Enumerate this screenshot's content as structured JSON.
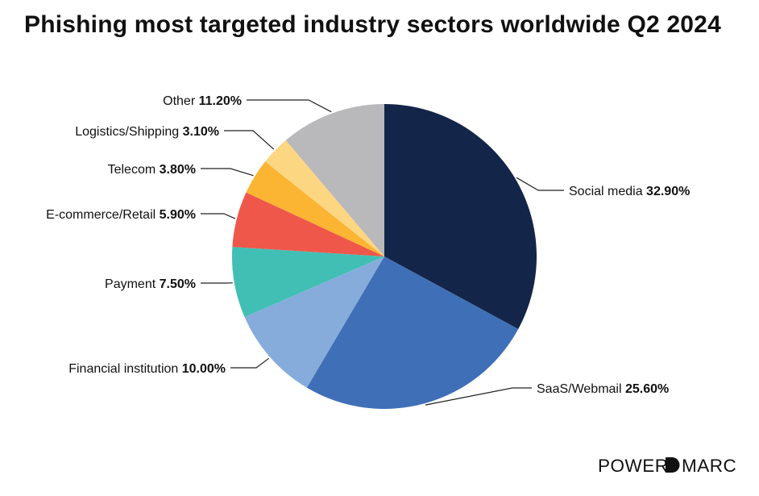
{
  "title": "Phishing most targeted industry sectors worldwide Q2 2024",
  "brand": "POWERDMARC",
  "chart_data": {
    "type": "pie",
    "title": "Phishing most targeted industry sectors worldwide Q2 2024",
    "unit": "%",
    "slices": [
      {
        "label": "Social media",
        "value": 32.9,
        "display": "32.90%",
        "color": "#132549"
      },
      {
        "label": "SaaS/Webmail",
        "value": 25.6,
        "display": "25.60%",
        "color": "#3f6fb6"
      },
      {
        "label": "Financial institution",
        "value": 10.0,
        "display": "10.00%",
        "color": "#86acdb"
      },
      {
        "label": "Payment",
        "value": 7.5,
        "display": "7.50%",
        "color": "#42bfb5"
      },
      {
        "label": "E-commerce/Retail",
        "value": 5.9,
        "display": "5.90%",
        "color": "#ef574a"
      },
      {
        "label": "Telecom",
        "value": 3.8,
        "display": "3.80%",
        "color": "#fbb532"
      },
      {
        "label": "Logistics/Shipping",
        "value": 3.1,
        "display": "3.10%",
        "color": "#fdd682"
      },
      {
        "label": "Other",
        "value": 11.2,
        "display": "11.20%",
        "color": "#b9b8ba"
      }
    ]
  }
}
